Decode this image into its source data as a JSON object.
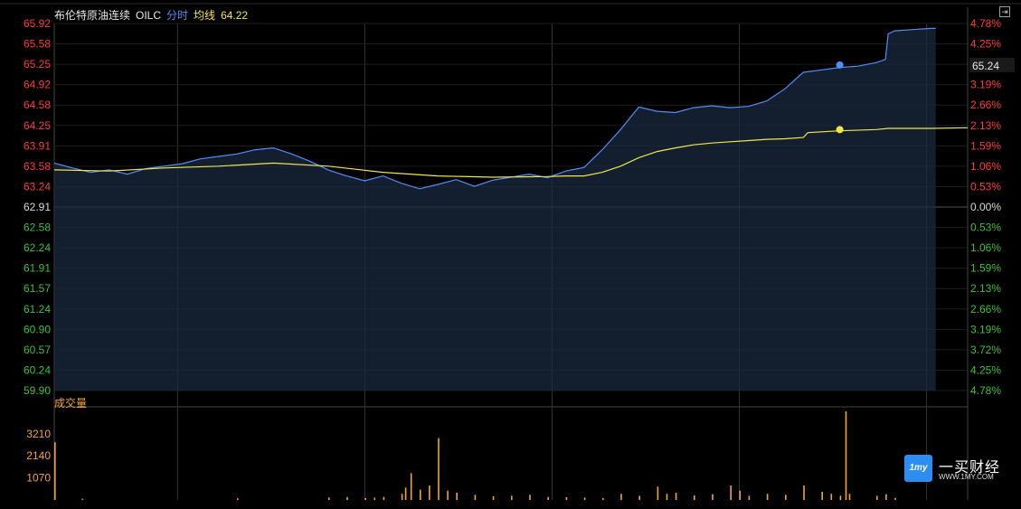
{
  "header": {
    "name": "布伦特原油连续",
    "code": "OILC",
    "mode": "分时",
    "avg_label": "均线",
    "avg_value": "64.22"
  },
  "volume_title": "成交量",
  "last_price_tag": "65.24",
  "logo": {
    "name": "一买财经",
    "url": "WWW.1MY.COM",
    "badge": "1my"
  },
  "colors": {
    "up": "#ff3b3b",
    "down": "#3cc13c",
    "neutral": "#d8d8d8",
    "price_line": "#4f8ff7",
    "avg_line": "#f1e64b",
    "volume": "#f2a33a",
    "grid": "#333333",
    "area_fill": "#1a2a3f"
  },
  "chart_data": [
    {
      "type": "line",
      "name": "price",
      "base_price": 62.91,
      "y_ticks": [
        "65.92",
        "65.58",
        "65.25",
        "64.92",
        "64.58",
        "64.25",
        "63.91",
        "63.58",
        "63.24",
        "62.91",
        "62.58",
        "62.24",
        "61.91",
        "61.57",
        "61.24",
        "60.90",
        "60.57",
        "60.24",
        "59.90"
      ],
      "y_pct_ticks": [
        "4.78%",
        "4.25%",
        "3.72%",
        "3.19%",
        "2.66%",
        "2.13%",
        "1.59%",
        "1.06%",
        "0.53%",
        "0.00%",
        "0.53%",
        "1.06%",
        "1.59%",
        "2.13%",
        "2.66%",
        "3.19%",
        "3.72%",
        "4.25%",
        "4.78%"
      ],
      "ylim": [
        59.9,
        65.92
      ],
      "x_range": [
        0,
        100
      ],
      "price_points": [
        [
          0,
          63.63
        ],
        [
          2,
          63.55
        ],
        [
          4,
          63.48
        ],
        [
          6,
          63.52
        ],
        [
          8,
          63.45
        ],
        [
          10,
          63.54
        ],
        [
          12,
          63.58
        ],
        [
          14,
          63.62
        ],
        [
          16,
          63.7
        ],
        [
          18,
          63.74
        ],
        [
          20,
          63.78
        ],
        [
          22,
          63.85
        ],
        [
          24,
          63.88
        ],
        [
          26,
          63.78
        ],
        [
          28,
          63.66
        ],
        [
          30,
          63.52
        ],
        [
          32,
          63.42
        ],
        [
          34,
          63.34
        ],
        [
          36,
          63.42
        ],
        [
          38,
          63.3
        ],
        [
          40,
          63.21
        ],
        [
          42,
          63.28
        ],
        [
          44,
          63.36
        ],
        [
          46,
          63.25
        ],
        [
          48,
          63.35
        ],
        [
          50,
          63.4
        ],
        [
          52,
          63.45
        ],
        [
          54,
          63.39
        ],
        [
          56,
          63.5
        ],
        [
          58,
          63.56
        ],
        [
          60,
          63.85
        ],
        [
          62,
          64.18
        ],
        [
          64,
          64.55
        ],
        [
          66,
          64.48
        ],
        [
          68,
          64.46
        ],
        [
          70,
          64.54
        ],
        [
          72,
          64.57
        ],
        [
          74,
          64.54
        ],
        [
          76,
          64.56
        ],
        [
          78,
          64.65
        ],
        [
          80,
          64.85
        ],
        [
          82,
          65.12
        ],
        [
          84,
          65.16
        ],
        [
          86,
          65.2
        ],
        [
          88,
          65.22
        ],
        [
          90,
          65.28
        ],
        [
          91,
          65.33
        ],
        [
          91.3,
          65.75
        ],
        [
          92,
          65.8
        ],
        [
          94,
          65.82
        ],
        [
          96,
          65.84
        ],
        [
          96.5,
          65.84
        ]
      ],
      "avg_points": [
        [
          0,
          63.52
        ],
        [
          6,
          63.5
        ],
        [
          12,
          63.55
        ],
        [
          18,
          63.58
        ],
        [
          24,
          63.63
        ],
        [
          30,
          63.58
        ],
        [
          36,
          63.48
        ],
        [
          42,
          63.42
        ],
        [
          48,
          63.4
        ],
        [
          54,
          63.41
        ],
        [
          56,
          63.42
        ],
        [
          58,
          63.42
        ],
        [
          60,
          63.48
        ],
        [
          62,
          63.58
        ],
        [
          64,
          63.72
        ],
        [
          66,
          63.82
        ],
        [
          68,
          63.88
        ],
        [
          70,
          63.93
        ],
        [
          72,
          63.96
        ],
        [
          74,
          63.98
        ],
        [
          76,
          64.0
        ],
        [
          78,
          64.02
        ],
        [
          80,
          64.03
        ],
        [
          82,
          64.05
        ],
        [
          82.5,
          64.13
        ],
        [
          86,
          64.16
        ],
        [
          90,
          64.18
        ],
        [
          91.3,
          64.2
        ],
        [
          96,
          64.2
        ],
        [
          100,
          64.21
        ]
      ],
      "last_price_marker": [
        86,
        65.24
      ],
      "avg_marker": [
        86,
        64.18
      ]
    },
    {
      "type": "bar",
      "name": "volume",
      "y_ticks": [
        "3210",
        "2140",
        "1070"
      ],
      "ylim": [
        0,
        4300
      ],
      "x_range": [
        0,
        100
      ],
      "spikes": [
        [
          0,
          2800
        ],
        [
          3,
          60
        ],
        [
          20,
          80
        ],
        [
          30,
          120
        ],
        [
          32,
          140
        ],
        [
          34,
          90
        ],
        [
          35,
          110
        ],
        [
          36,
          150
        ],
        [
          38,
          300
        ],
        [
          38.4,
          600
        ],
        [
          39,
          1300
        ],
        [
          40,
          500
        ],
        [
          41,
          700
        ],
        [
          42,
          3000
        ],
        [
          43,
          450
        ],
        [
          44,
          350
        ],
        [
          46,
          250
        ],
        [
          48,
          180
        ],
        [
          50,
          200
        ],
        [
          52,
          250
        ],
        [
          54,
          150
        ],
        [
          56,
          130
        ],
        [
          58,
          120
        ],
        [
          60,
          90
        ],
        [
          62,
          300
        ],
        [
          64,
          200
        ],
        [
          66,
          650
        ],
        [
          67,
          300
        ],
        [
          68,
          350
        ],
        [
          70,
          220
        ],
        [
          72,
          280
        ],
        [
          74,
          700
        ],
        [
          75,
          450
        ],
        [
          76,
          200
        ],
        [
          78,
          300
        ],
        [
          80,
          250
        ],
        [
          82,
          700
        ],
        [
          84,
          400
        ],
        [
          85,
          300
        ],
        [
          86,
          200
        ],
        [
          86.6,
          4300
        ],
        [
          87,
          300
        ],
        [
          90,
          200
        ],
        [
          91,
          280
        ],
        [
          92,
          100
        ]
      ]
    }
  ]
}
